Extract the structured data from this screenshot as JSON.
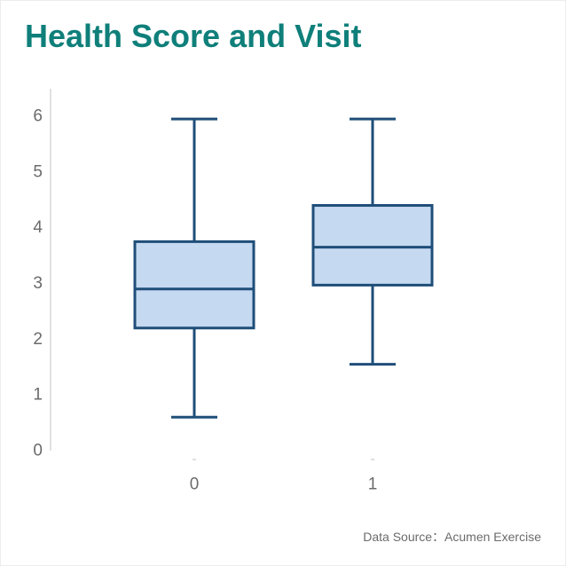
{
  "chart_data": {
    "type": "box",
    "title": "Health Score and Visit",
    "xlabel": "",
    "ylabel": "",
    "categories": [
      "0",
      "1"
    ],
    "boxes": [
      {
        "category": "0",
        "min": 0.6,
        "q1": 2.2,
        "median": 2.9,
        "q3": 3.75,
        "max": 5.95
      },
      {
        "category": "1",
        "min": 1.55,
        "q1": 2.97,
        "median": 3.65,
        "q3": 4.4,
        "max": 5.95
      }
    ],
    "yticks": [
      0,
      1,
      2,
      3,
      4,
      5,
      6
    ],
    "ylim": [
      0,
      6
    ],
    "grid": false,
    "legend": "none",
    "colors": {
      "box_fill": "#c5d9f1",
      "box_stroke": "#1f4e79",
      "title": "#0f7f7a",
      "axis": "#d9d9d9",
      "text": "#6b6b6b"
    }
  },
  "footer": {
    "source": "Data Source：Acumen Exercise"
  }
}
